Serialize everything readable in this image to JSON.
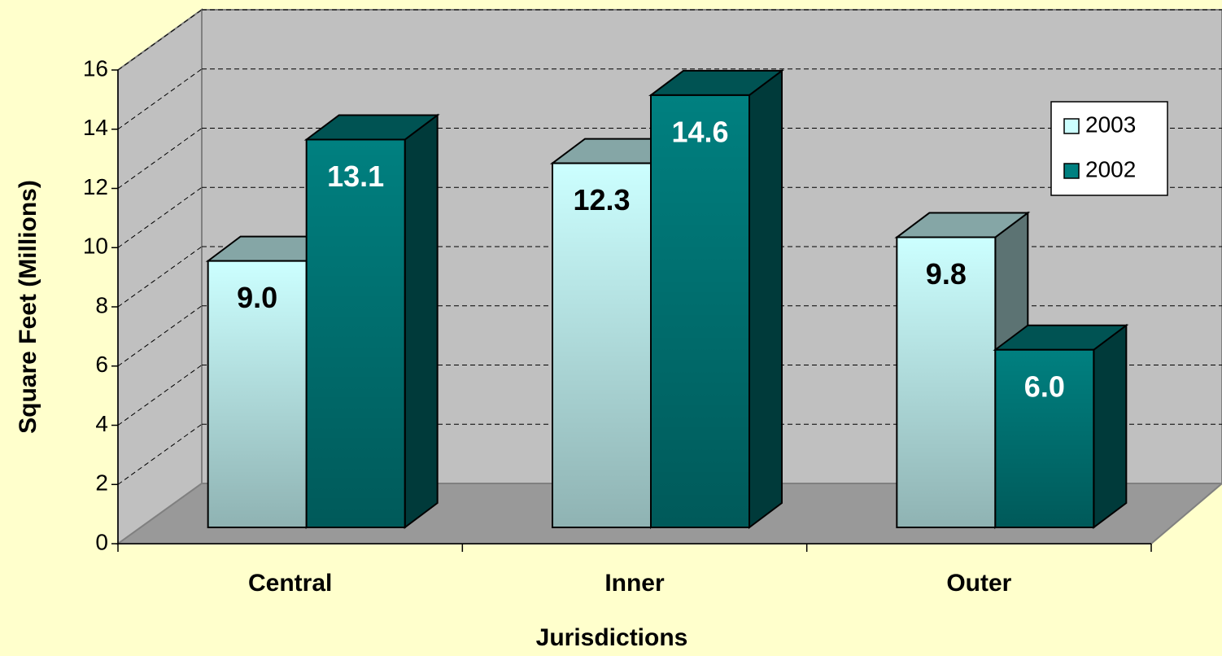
{
  "chart_data": {
    "type": "bar3d",
    "x_label": "Jurisdictions",
    "y_label": "Square Feet (Millions)",
    "categories": [
      "Central",
      "Inner",
      "Outer"
    ],
    "series": [
      {
        "name": "2003",
        "color": "#ccffff",
        "values": [
          9.0,
          12.3,
          9.8
        ],
        "value_labels": [
          "9.0",
          "12.3",
          "9.8"
        ]
      },
      {
        "name": "2002",
        "color": "#008080",
        "values": [
          13.1,
          14.6,
          6.0
        ],
        "value_labels": [
          "13.1",
          "14.6",
          "6.0"
        ]
      }
    ],
    "ylim": [
      0,
      16
    ],
    "yticks": [
      0,
      2,
      4,
      6,
      8,
      10,
      12,
      14,
      16
    ],
    "grid": true,
    "legend": "upper right"
  }
}
